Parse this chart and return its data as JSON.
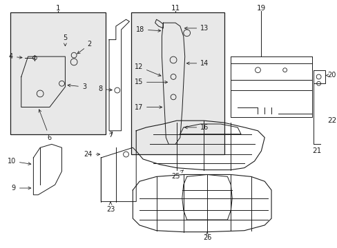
{
  "bg_color": "#ffffff",
  "box_fill": "#e8e8e8",
  "line_color": "#1a1a1a",
  "fig_width": 4.89,
  "fig_height": 3.6,
  "dpi": 100
}
